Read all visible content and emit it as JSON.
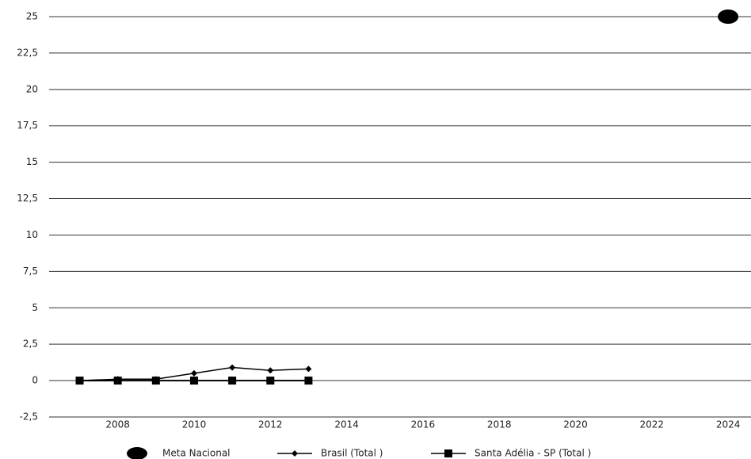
{
  "chart_data": {
    "type": "line",
    "series": [
      {
        "name": "Meta Nacional",
        "color": "#000000",
        "marker": "circle",
        "x": [
          2024
        ],
        "values": [
          25
        ]
      },
      {
        "name": "Brasil (Total )",
        "color": "#000000",
        "marker": "diamond",
        "x": [
          2007,
          2008,
          2009,
          2010,
          2011,
          2012,
          2013
        ],
        "values": [
          0,
          0.1,
          0.1,
          0.5,
          0.9,
          0.7,
          0.8
        ]
      },
      {
        "name": "Santa Adélia - SP (Total )",
        "color": "#000000",
        "marker": "square",
        "x": [
          2007,
          2008,
          2009,
          2010,
          2011,
          2012,
          2013
        ],
        "values": [
          0,
          0,
          0,
          0,
          0,
          0,
          0
        ]
      }
    ],
    "xlim": [
      2006.2,
      2024.6
    ],
    "xticks": [
      2008,
      2010,
      2012,
      2014,
      2016,
      2018,
      2020,
      2022,
      2024
    ],
    "ylim": [
      -2.5,
      25
    ],
    "yticks": [
      {
        "value": -2.5,
        "label": "-2,5"
      },
      0,
      {
        "value": 2.5,
        "label": "2,5"
      },
      5,
      {
        "value": 7.5,
        "label": "7,5"
      },
      10,
      {
        "value": 12.5,
        "label": "12,5"
      },
      15,
      {
        "value": 17.5,
        "label": "17,5"
      },
      20,
      {
        "value": 22.5,
        "label": "22,5"
      },
      25
    ],
    "grid": true
  }
}
